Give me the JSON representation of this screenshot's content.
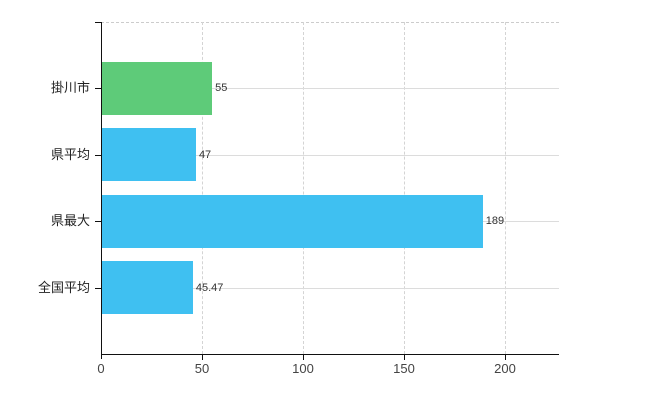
{
  "chart_data": {
    "type": "bar",
    "orientation": "horizontal",
    "title": "",
    "xlabel": "",
    "ylabel": "",
    "categories": [
      "掛川市",
      "県平均",
      "県最大",
      "全国平均"
    ],
    "values": [
      55,
      47,
      189,
      45.47
    ],
    "value_labels": [
      "55",
      "47",
      "189",
      "45.47"
    ],
    "bar_colors": [
      "#5ecb79",
      "#3fc0f1",
      "#3fc0f1",
      "#3fc0f1"
    ],
    "x_ticks": [
      0,
      50,
      100,
      150,
      200
    ],
    "x_tick_labels": [
      "0",
      "50",
      "100",
      "150",
      "200"
    ],
    "xlim": [
      0,
      226.7
    ],
    "grid": true,
    "legend": "none"
  },
  "colors": {
    "background": "#ffffff",
    "bar_green": "#5ecb79",
    "bar_blue": "#3fc0f1",
    "axis_line": "#111111",
    "gridline_h": "#dcdcdc",
    "gridline_v": "#d4d4d4",
    "top_border": "#cccccc",
    "category_text": "#222222",
    "value_text": "#333333",
    "tick_text": "#444444"
  }
}
